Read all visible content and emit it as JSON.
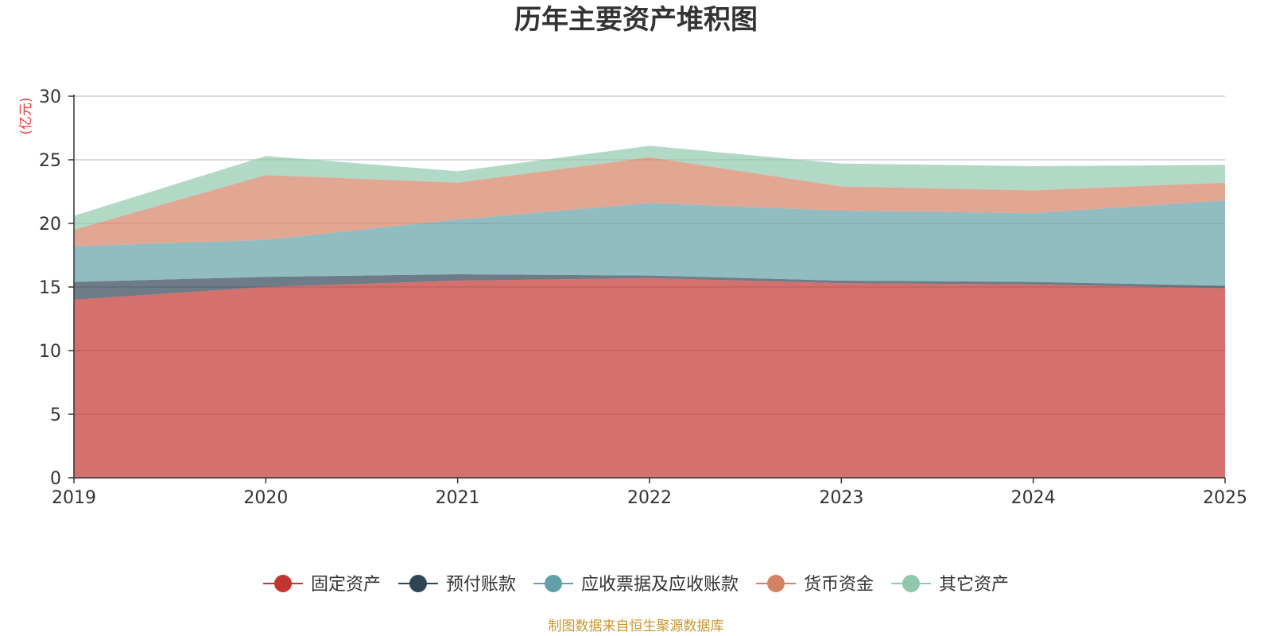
{
  "chart_data": {
    "type": "area",
    "stacked": true,
    "title": "历年主要资产堆积图",
    "ylabel": "(亿元)",
    "xlabel": "",
    "ylim": [
      0,
      30
    ],
    "yticks": [
      0,
      5,
      10,
      15,
      20,
      25,
      30
    ],
    "categories": [
      "2019",
      "2020",
      "2021",
      "2022",
      "2023",
      "2024",
      "2025"
    ],
    "series": [
      {
        "name": "固定资产",
        "color": "#c23531",
        "values": [
          14.0,
          15.0,
          15.5,
          15.7,
          15.3,
          15.2,
          14.9
        ]
      },
      {
        "name": "预付账款",
        "color": "#2f4554",
        "values": [
          1.4,
          0.8,
          0.5,
          0.2,
          0.2,
          0.2,
          0.2
        ]
      },
      {
        "name": "应收票据及应收账款",
        "color": "#61a0a8",
        "values": [
          2.8,
          2.9,
          4.3,
          5.7,
          5.5,
          5.4,
          6.7
        ]
      },
      {
        "name": "货币资金",
        "color": "#d48265",
        "values": [
          1.3,
          5.1,
          2.9,
          3.6,
          1.9,
          1.8,
          1.4
        ]
      },
      {
        "name": "其它资产",
        "color": "#91c7ae",
        "values": [
          1.1,
          1.5,
          0.9,
          0.9,
          1.8,
          1.9,
          1.4
        ]
      }
    ],
    "legend_position": "bottom-center",
    "grid": true,
    "source_note": "制图数据来自恒生聚源数据库"
  }
}
